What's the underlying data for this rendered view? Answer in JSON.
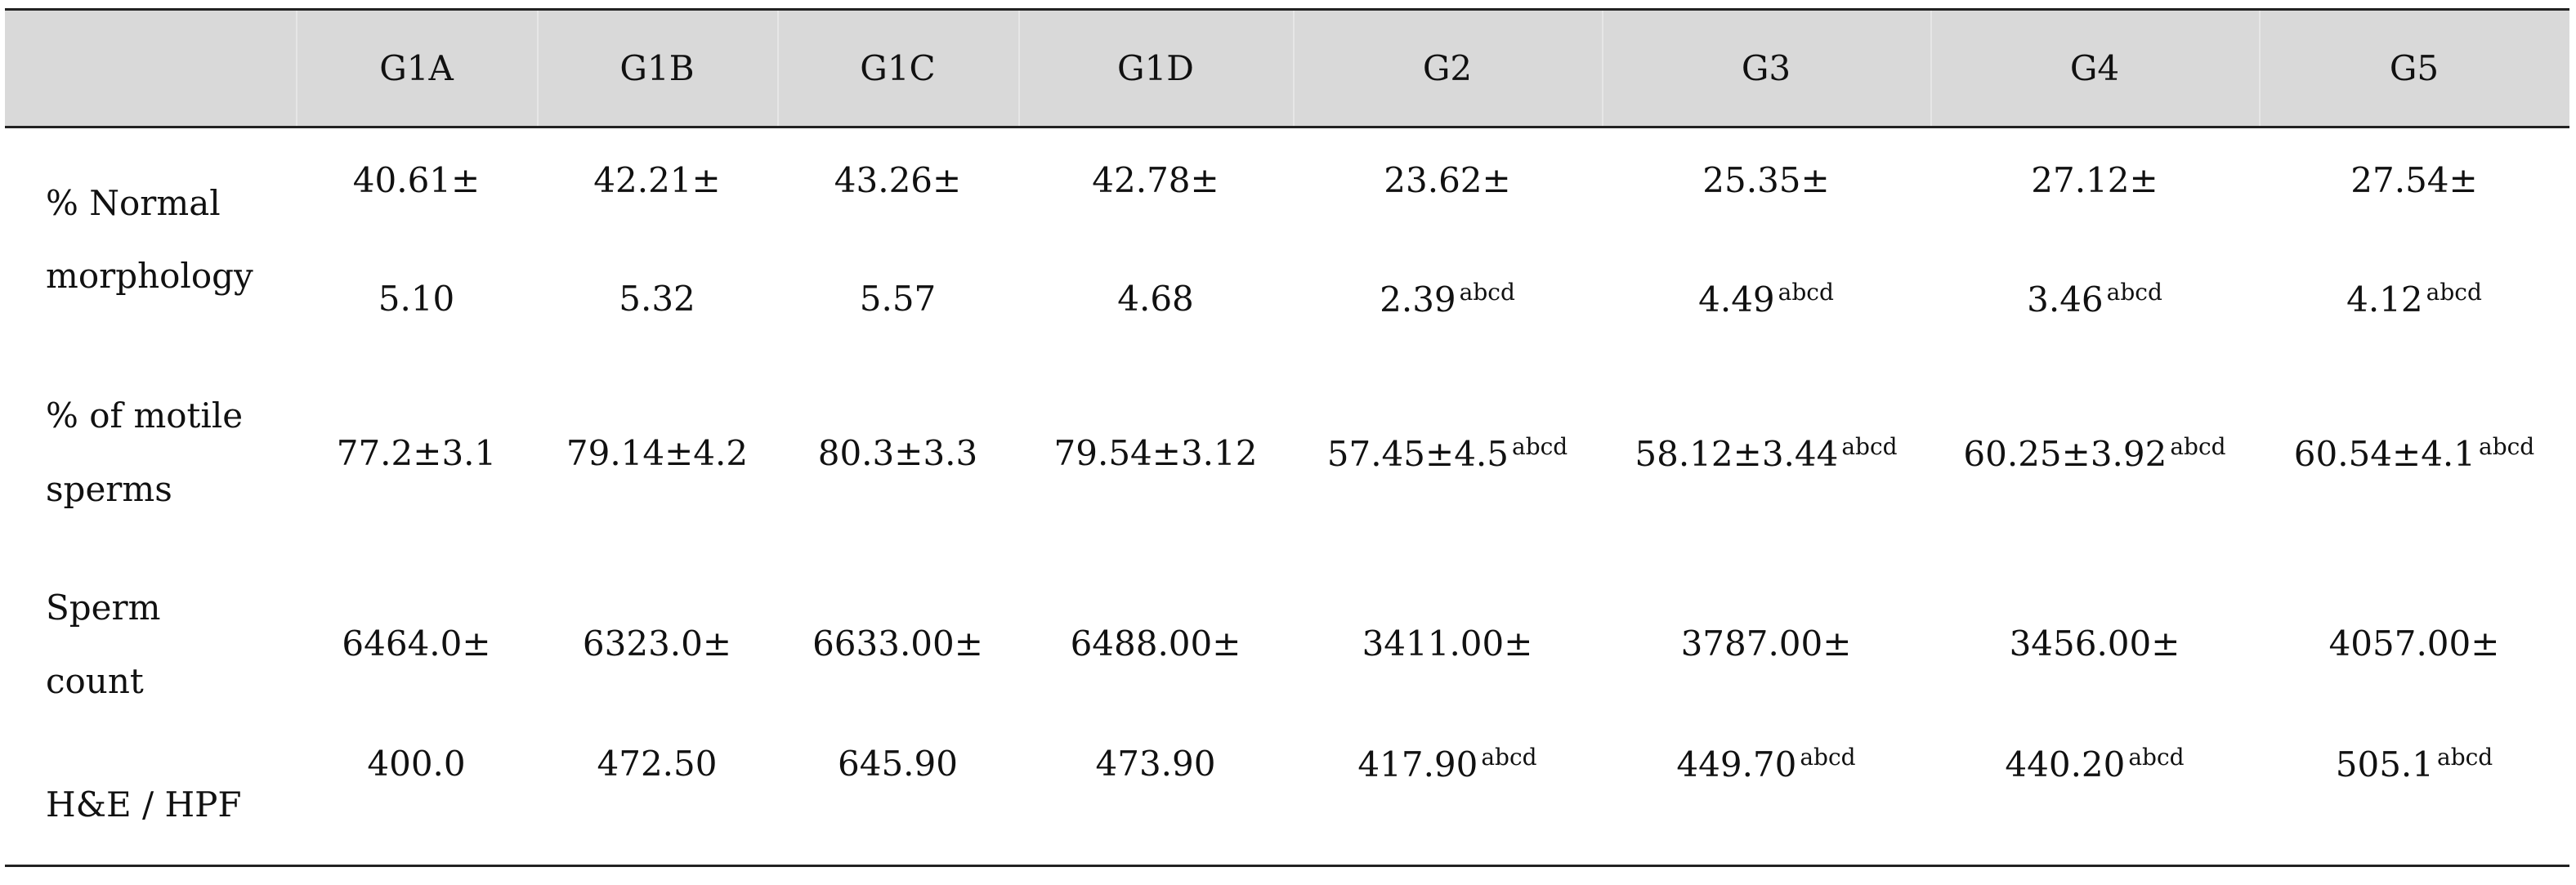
{
  "table": {
    "columns": [
      "G1A",
      "G1B",
      "G1C",
      "G1D",
      "G2",
      "G3",
      "G4",
      "G5"
    ],
    "rows": [
      {
        "label": [
          "% Normal",
          "morphology"
        ],
        "cells": [
          {
            "lines": [
              "40.61±",
              "5.10"
            ]
          },
          {
            "lines": [
              "42.21±",
              "5.32"
            ]
          },
          {
            "lines": [
              "43.26±",
              "5.57"
            ]
          },
          {
            "lines": [
              "42.78±",
              "4.68"
            ]
          },
          {
            "lines": [
              "23.62±",
              "2.39"
            ],
            "sup": "abcd"
          },
          {
            "lines": [
              "25.35±",
              "4.49"
            ],
            "sup": "abcd"
          },
          {
            "lines": [
              "27.12±",
              "3.46"
            ],
            "sup": "abcd"
          },
          {
            "lines": [
              "27.54±",
              "4.12"
            ],
            "sup": "abcd"
          }
        ]
      },
      {
        "label": [
          "% of motile",
          "sperms"
        ],
        "cells": [
          {
            "lines": [
              "77.2±3.1"
            ]
          },
          {
            "lines": [
              "79.14±4.2"
            ]
          },
          {
            "lines": [
              "80.3±3.3"
            ]
          },
          {
            "lines": [
              "79.54±3.12"
            ]
          },
          {
            "lines": [
              "57.45±4.5"
            ],
            "sup": "abcd"
          },
          {
            "lines": [
              "58.12±3.44"
            ],
            "sup": "abcd"
          },
          {
            "lines": [
              "60.25±3.92"
            ],
            "sup": "abcd"
          },
          {
            "lines": [
              "60.54±4.1"
            ],
            "sup": "abcd"
          }
        ]
      },
      {
        "label": [
          "Sperm",
          "count",
          "H&E / HPF"
        ],
        "cells": [
          {
            "lines": [
              "6464.0±",
              "400.0"
            ]
          },
          {
            "lines": [
              "6323.0±",
              "472.50"
            ]
          },
          {
            "lines": [
              "6633.00±",
              "645.90"
            ]
          },
          {
            "lines": [
              "6488.00±",
              "473.90"
            ]
          },
          {
            "lines": [
              "3411.00±",
              "417.90"
            ],
            "sup": "abcd"
          },
          {
            "lines": [
              "3787.00±",
              "449.70"
            ],
            "sup": "abcd"
          },
          {
            "lines": [
              "3456.00±",
              "440.20"
            ],
            "sup": "abcd"
          },
          {
            "lines": [
              "4057.00±",
              "505.1"
            ],
            "sup": "abcd"
          }
        ]
      }
    ]
  }
}
